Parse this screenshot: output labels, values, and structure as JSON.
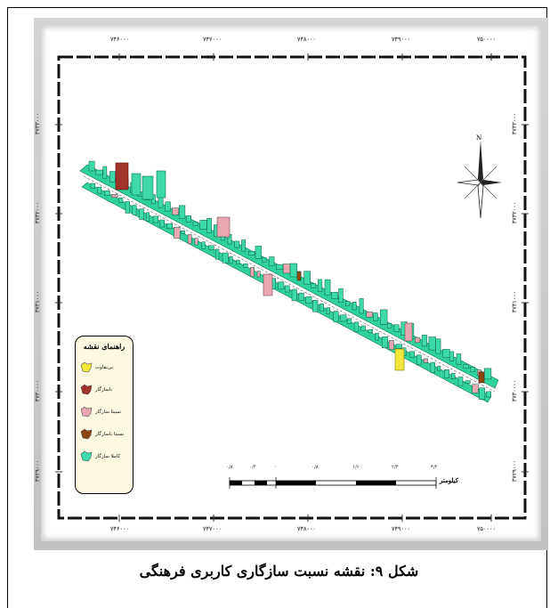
{
  "map": {
    "top_coords": [
      "۷۴۶۰۰۰",
      "۷۴۷۰۰۰",
      "۷۴۸۰۰۰",
      "۷۴۹۰۰۰",
      "۷۵۰۰۰۰"
    ],
    "bottom_coords": [
      "۷۴۶۰۰۰",
      "۷۴۷۰۰۰",
      "۷۴۸۰۰۰",
      "۷۴۹۰۰۰",
      "۷۵۰۰۰۰"
    ],
    "left_coords": [
      "۳۷۳۳۰۰۰",
      "۳۷۳۲۰۰۰",
      "۳۷۳۱۰۰۰",
      "۳۷۳۰۰۰۰",
      "۳۷۲۹۰۰۰"
    ],
    "right_coords": [
      "۳۷۳۳۰۰۰",
      "۳۷۳۲۰۰۰",
      "۳۷۳۱۰۰۰",
      "۳۷۳۰۰۰۰",
      "۳۷۲۹۰۰۰"
    ],
    "north_label": "N",
    "legend": {
      "title": "راهنمای نقشه",
      "items": [
        {
          "label": "بی‌تفاوت",
          "color": "#f2e63a",
          "icon": "parcel-swatch"
        },
        {
          "label": "ناسازگار",
          "color": "#a0332a",
          "icon": "parcel-swatch"
        },
        {
          "label": "نسبتا سازگار",
          "color": "#e8a7b0",
          "icon": "parcel-swatch"
        },
        {
          "label": "نسبتا ناسازگار",
          "color": "#8b4513",
          "icon": "parcel-swatch"
        },
        {
          "label": "کاملا سازگار",
          "color": "#3dd9a8",
          "icon": "parcel-swatch"
        }
      ]
    },
    "scale": {
      "ticks": [
        "۰/۸",
        "۰/۴",
        "۰",
        "۰/۸",
        "۱/۶",
        "۲/۴",
        "۳/۲"
      ],
      "unit": "کیلومتر"
    }
  },
  "caption": "شکل ۹: نقشه نسبت سازگاری کاربری فرهنگی"
}
